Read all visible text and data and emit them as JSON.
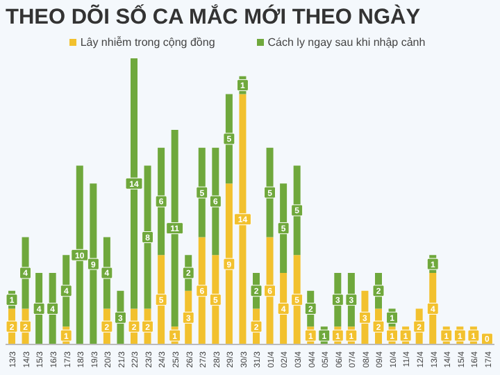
{
  "chart_data": {
    "type": "bar",
    "title": "THEO DÕI SỐ CA MẮC MỚI THEO NGÀY",
    "stacked": true,
    "legend": "top",
    "categories": [
      "13/3",
      "14/3",
      "15/3",
      "16/3",
      "17/3",
      "18/3",
      "19/3",
      "20/3",
      "21/3",
      "22/3",
      "23/3",
      "24/3",
      "25/3",
      "26/3",
      "27/3",
      "28/3",
      "29/3",
      "30/3",
      "31/3",
      "01/4",
      "02/4",
      "03/4",
      "04/4",
      "05/4",
      "06/4",
      "07/4",
      "08/4",
      "09/4",
      "10/4",
      "11/4",
      "12/4",
      "13/4",
      "14/4",
      "15/4",
      "16/4",
      "17/4"
    ],
    "series": [
      {
        "name": "Lây nhiễm trong cộng đồng",
        "color": "#f2c12e",
        "values": [
          2,
          2,
          0,
          0,
          1,
          0,
          0,
          2,
          0,
          2,
          2,
          5,
          1,
          3,
          6,
          5,
          9,
          14,
          2,
          6,
          4,
          5,
          1,
          0,
          1,
          1,
          3,
          2,
          1,
          1,
          2,
          4,
          1,
          1,
          1,
          0
        ],
        "value_labels": [
          "2",
          "2",
          null,
          null,
          "1",
          null,
          null,
          "2",
          null,
          "2",
          "2",
          "5",
          "1",
          "3",
          "6",
          "5",
          "9",
          "14",
          "2",
          "6",
          "4",
          "5",
          "1",
          null,
          "1",
          "1",
          "3",
          "2",
          "1",
          "1",
          "2",
          "4",
          "1",
          "1",
          "1",
          "0"
        ]
      },
      {
        "name": "Cách ly ngay sau khi nhập cảnh",
        "color": "#6fa83c",
        "values": [
          1,
          4,
          4,
          4,
          4,
          10,
          9,
          4,
          3,
          14,
          8,
          6,
          11,
          2,
          5,
          6,
          5,
          1,
          2,
          5,
          5,
          5,
          2,
          1,
          3,
          3,
          0,
          2,
          1,
          0,
          0,
          1,
          0,
          0,
          0,
          0
        ],
        "value_labels": [
          "1",
          "4",
          "4",
          "4",
          "4",
          "10",
          "9",
          "4",
          "3",
          "14",
          "8",
          "6",
          "11",
          "2",
          "5",
          "6",
          "5",
          "1",
          "2",
          "5",
          "5",
          "5",
          "2",
          "1",
          "3",
          "3",
          null,
          "2",
          "1",
          null,
          null,
          "1",
          null,
          null,
          null,
          null
        ]
      }
    ]
  }
}
